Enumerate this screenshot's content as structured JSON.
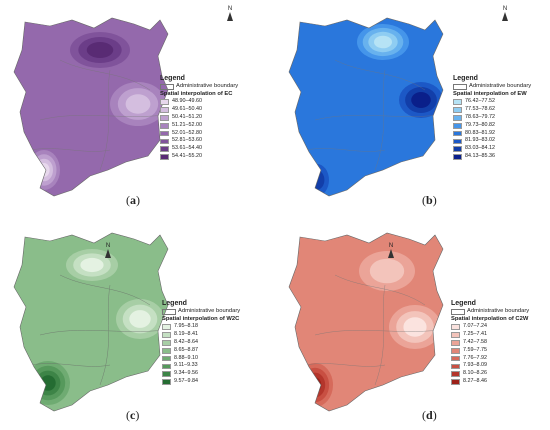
{
  "common": {
    "north_label": "N",
    "legend_title": "Legend",
    "admin_boundary": "Administrative boundary"
  },
  "panels": [
    {
      "id": "a",
      "caption_open": "(",
      "caption_letter": "a",
      "caption_close": ")",
      "interp_title": "Spatial interpolation of EC",
      "classes": [
        "48.90–49.60",
        "49.61–50.40",
        "50.41–51.20",
        "51.21–52.00",
        "52.01–52.80",
        "52.81–53.60",
        "53.61–54.40",
        "54.41–55.20"
      ],
      "colors": [
        "#e7d8ec",
        "#d4bedf",
        "#bea0cf",
        "#a883bd",
        "#9469ac",
        "#80539b",
        "#6b3d88",
        "#592b74"
      ],
      "base_class": 4,
      "hotspots": [
        {
          "name": "north-high-zone",
          "class": 7
        },
        {
          "name": "east-low-zone",
          "class": 1
        },
        {
          "name": "southwest-low-zone",
          "class": 0
        }
      ]
    },
    {
      "id": "b",
      "caption_open": "(",
      "caption_letter": "b",
      "caption_close": ")",
      "interp_title": "Spatial interpolation of EW",
      "classes": [
        "76.42–77.52",
        "77.53–78.62",
        "78.63–79.72",
        "79.73–80.82",
        "80.83–81.92",
        "81.93–83.02",
        "83.03–84.12",
        "84.13–85.36"
      ],
      "colors": [
        "#b6e3f5",
        "#8fcdf2",
        "#68b2ee",
        "#4595ea",
        "#2a77dc",
        "#1c58c6",
        "#123ea9",
        "#0a1f8a"
      ],
      "base_class": 4,
      "hotspots": [
        {
          "name": "north-low-zone",
          "class": 0
        },
        {
          "name": "east-high-zone",
          "class": 7
        },
        {
          "name": "southwest-high-zone",
          "class": 6
        }
      ]
    },
    {
      "id": "c",
      "caption_open": "(",
      "caption_letter": "c",
      "caption_close": ")",
      "interp_title": "Spatial interpolation of W2C",
      "classes": [
        "7.95–8.18",
        "8.19–8.41",
        "8.42–8.64",
        "8.65–8.87",
        "8.88–9.10",
        "9.11–9.33",
        "9.34–9.56",
        "9.57–9.84"
      ],
      "colors": [
        "#e4f2e2",
        "#c5e0c3",
        "#a7cea5",
        "#8abd8a",
        "#6fab72",
        "#56995c",
        "#3d8447",
        "#246c32"
      ],
      "base_class": 3,
      "hotspots": [
        {
          "name": "north-low-zone",
          "class": 0
        },
        {
          "name": "east-low-zone",
          "class": 0
        },
        {
          "name": "southwest-high-zone",
          "class": 7
        }
      ]
    },
    {
      "id": "d",
      "caption_open": "(",
      "caption_letter": "d",
      "caption_close": ")",
      "interp_title": "Spatial interpolation of C2W",
      "classes": [
        "7.07–7.24",
        "7.25–7.41",
        "7.42–7.58",
        "7.59–7.75",
        "7.76–7.92",
        "7.93–8.09",
        "8.10–8.26",
        "8.27–8.46"
      ],
      "colors": [
        "#fbe3df",
        "#f3c4bb",
        "#eba498",
        "#e18677",
        "#d66a5b",
        "#c84f42",
        "#b4362c",
        "#9c2018"
      ],
      "base_class": 3,
      "hotspots": [
        {
          "name": "north-low-zone",
          "class": 1
        },
        {
          "name": "east-low-zone",
          "class": 0
        },
        {
          "name": "southwest-high-zone",
          "class": 7
        }
      ]
    }
  ]
}
